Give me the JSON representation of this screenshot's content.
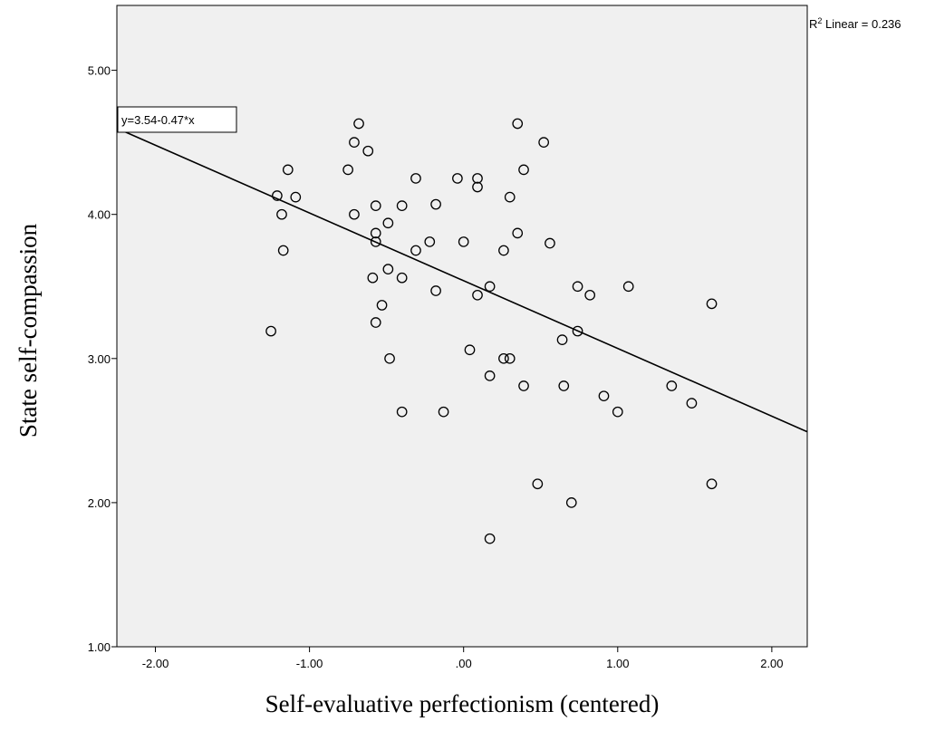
{
  "chart_data": {
    "type": "scatter",
    "xlabel": "Self-evaluative perfectionism (centered)",
    "ylabel": "State self-compassion",
    "xlim": [
      -2.25,
      2.23
    ],
    "ylim": [
      1.0,
      5.45
    ],
    "xticks": [
      -2.0,
      -1.0,
      0.0,
      1.0,
      2.0
    ],
    "xtick_labels": [
      "-2.00",
      "-1.00",
      ".00",
      "1.00",
      "2.00"
    ],
    "yticks": [
      1.0,
      2.0,
      3.0,
      4.0,
      5.0
    ],
    "ytick_labels": [
      "1.00",
      "2.00",
      "3.00",
      "4.00",
      "5.00"
    ],
    "grid": false,
    "background": "#f0f0f0",
    "fit_line": {
      "intercept": 3.54,
      "slope": -0.47,
      "label": "y=3.54-0.47*x"
    },
    "r2_label": {
      "prefix": "R",
      "sup": "2",
      "text": " Linear = 0.236"
    },
    "points": [
      {
        "x": -1.25,
        "y": 3.19
      },
      {
        "x": -1.21,
        "y": 4.13
      },
      {
        "x": -1.18,
        "y": 4.0
      },
      {
        "x": -1.17,
        "y": 3.75
      },
      {
        "x": -1.14,
        "y": 4.31
      },
      {
        "x": -1.09,
        "y": 4.12
      },
      {
        "x": -0.75,
        "y": 4.31
      },
      {
        "x": -0.71,
        "y": 4.5
      },
      {
        "x": -0.71,
        "y": 4.0
      },
      {
        "x": -0.68,
        "y": 4.63
      },
      {
        "x": -0.62,
        "y": 4.44
      },
      {
        "x": -0.59,
        "y": 3.56
      },
      {
        "x": -0.57,
        "y": 4.06
      },
      {
        "x": -0.57,
        "y": 3.87
      },
      {
        "x": -0.57,
        "y": 3.81
      },
      {
        "x": -0.57,
        "y": 3.25
      },
      {
        "x": -0.53,
        "y": 3.37
      },
      {
        "x": -0.49,
        "y": 3.62
      },
      {
        "x": -0.49,
        "y": 3.94
      },
      {
        "x": -0.48,
        "y": 3.0
      },
      {
        "x": -0.4,
        "y": 4.06
      },
      {
        "x": -0.4,
        "y": 3.56
      },
      {
        "x": -0.4,
        "y": 2.63
      },
      {
        "x": -0.31,
        "y": 4.25
      },
      {
        "x": -0.31,
        "y": 3.75
      },
      {
        "x": -0.22,
        "y": 3.81
      },
      {
        "x": -0.18,
        "y": 4.07
      },
      {
        "x": -0.18,
        "y": 3.47
      },
      {
        "x": -0.13,
        "y": 2.63
      },
      {
        "x": -0.04,
        "y": 4.25
      },
      {
        "x": 0.0,
        "y": 3.81
      },
      {
        "x": 0.04,
        "y": 3.06
      },
      {
        "x": 0.09,
        "y": 4.25
      },
      {
        "x": 0.09,
        "y": 4.19
      },
      {
        "x": 0.09,
        "y": 3.44
      },
      {
        "x": 0.17,
        "y": 3.5
      },
      {
        "x": 0.17,
        "y": 2.88
      },
      {
        "x": 0.17,
        "y": 1.75
      },
      {
        "x": 0.26,
        "y": 3.75
      },
      {
        "x": 0.26,
        "y": 3.0
      },
      {
        "x": 0.3,
        "y": 4.12
      },
      {
        "x": 0.3,
        "y": 3.0
      },
      {
        "x": 0.35,
        "y": 4.63
      },
      {
        "x": 0.35,
        "y": 3.87
      },
      {
        "x": 0.39,
        "y": 4.31
      },
      {
        "x": 0.39,
        "y": 2.81
      },
      {
        "x": 0.48,
        "y": 2.13
      },
      {
        "x": 0.52,
        "y": 4.5
      },
      {
        "x": 0.56,
        "y": 3.8
      },
      {
        "x": 0.64,
        "y": 3.13
      },
      {
        "x": 0.65,
        "y": 2.81
      },
      {
        "x": 0.7,
        "y": 2.0
      },
      {
        "x": 0.74,
        "y": 3.5
      },
      {
        "x": 0.74,
        "y": 3.19
      },
      {
        "x": 0.82,
        "y": 3.44
      },
      {
        "x": 0.91,
        "y": 2.74
      },
      {
        "x": 1.0,
        "y": 2.63
      },
      {
        "x": 1.07,
        "y": 3.5
      },
      {
        "x": 1.35,
        "y": 2.81
      },
      {
        "x": 1.48,
        "y": 2.69
      },
      {
        "x": 1.61,
        "y": 3.38
      },
      {
        "x": 1.61,
        "y": 2.13
      }
    ]
  }
}
